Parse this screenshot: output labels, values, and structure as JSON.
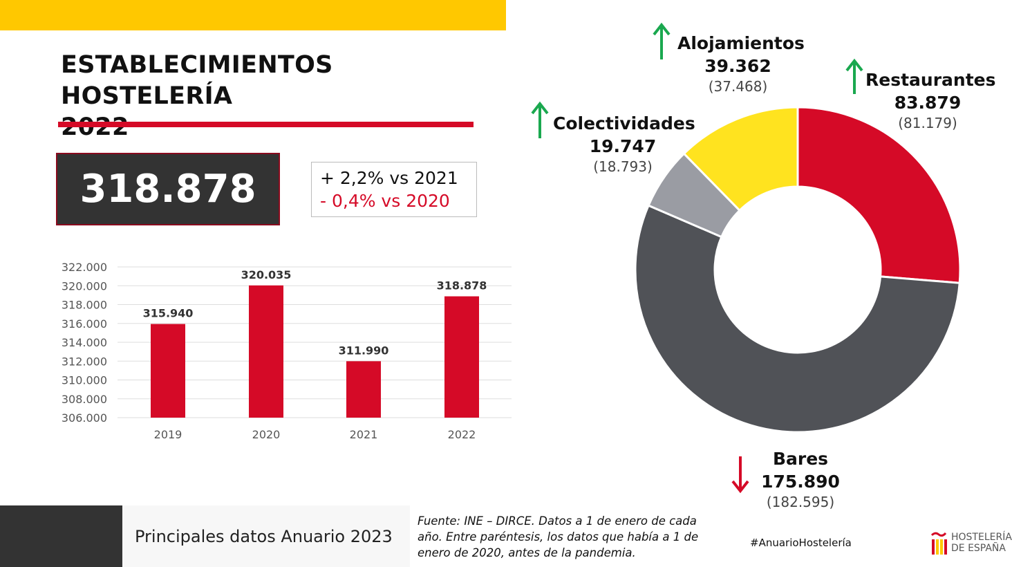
{
  "title_line1": "ESTABLECIMIENTOS HOSTELERÍA",
  "title_line2": "2022",
  "total": "318.878",
  "comparison": {
    "vs2021": "+ 2,2% vs 2021",
    "vs2020": "- 0,4% vs 2020"
  },
  "colors": {
    "red": "#d50a27",
    "dark": "#505257",
    "grey": "#9a9ca3",
    "yellow": "#ffe31f",
    "green": "#1aa84f",
    "banner": "#ffc800"
  },
  "chart_data": [
    {
      "type": "bar",
      "categories": [
        "2019",
        "2020",
        "2021",
        "2022"
      ],
      "values": [
        315940,
        320035,
        311990,
        318878
      ],
      "data_labels": [
        "315.940",
        "320.035",
        "311.990",
        "318.878"
      ],
      "ylim": [
        306000,
        322000
      ],
      "yticks": [
        "306.000",
        "308.000",
        "310.000",
        "312.000",
        "314.000",
        "316.000",
        "318.000",
        "320.000",
        "322.000"
      ],
      "grid": true
    },
    {
      "type": "pie",
      "donut": true,
      "slices": [
        {
          "name": "Restaurantes",
          "value": 83879,
          "label": "83.879",
          "previous": "(81.179)",
          "trend": "up",
          "color": "#d50a27"
        },
        {
          "name": "Bares",
          "value": 175890,
          "label": "175.890",
          "previous": "(182.595)",
          "trend": "down",
          "color": "#505257"
        },
        {
          "name": "Colectividades",
          "value": 19747,
          "label": "19.747",
          "previous": "(18.793)",
          "trend": "up",
          "color": "#9a9ca3"
        },
        {
          "name": "Alojamientos",
          "value": 39362,
          "label": "39.362",
          "previous": "(37.468)",
          "trend": "up",
          "color": "#ffe31f"
        }
      ]
    }
  ],
  "footer": {
    "title": "Principales datos Anuario 2023",
    "source": "Fuente: INE – DIRCE. Datos a 1 de enero de cada año. Entre paréntesis, los datos que había a 1 de enero de 2020, antes de la pandemia.",
    "hashtag": "#AnuarioHostelería",
    "logo_text1": "HOSTELERÍA",
    "logo_text2": "DE ESPAÑA"
  }
}
